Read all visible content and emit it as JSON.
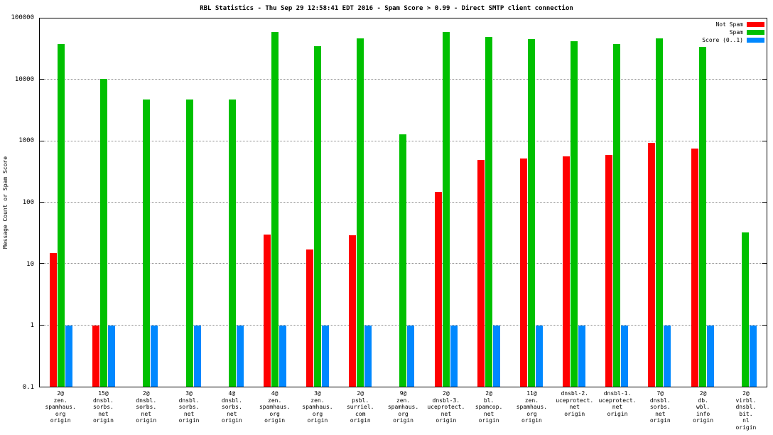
{
  "chart_data": {
    "type": "bar",
    "title": "RBL Statistics - Thu Sep 29 12:58:41 EDT 2016 - Spam Score > 0.99 - Direct SMTP client connection",
    "ylabel": "Message Count or Spam Score",
    "xlabel": "",
    "y_scale": "log",
    "ylim": [
      0.1,
      100000
    ],
    "y_ticks": [
      0.1,
      1,
      10,
      100,
      1000,
      10000,
      100000
    ],
    "grid": "horizontal-dotted",
    "legend_position": "top-right",
    "categories": [
      [
        "2@",
        "zen.",
        "spamhaus.",
        "org",
        "origin"
      ],
      [
        "15@",
        "dnsbl.",
        "sorbs.",
        "net",
        "origin"
      ],
      [
        "2@",
        "dnsbl.",
        "sorbs.",
        "net",
        "origin"
      ],
      [
        "3@",
        "dnsbl.",
        "sorbs.",
        "net",
        "origin"
      ],
      [
        "4@",
        "dnsbl.",
        "sorbs.",
        "net",
        "origin"
      ],
      [
        "4@",
        "zen.",
        "spamhaus.",
        "org",
        "origin"
      ],
      [
        "3@",
        "zen.",
        "spamhaus.",
        "org",
        "origin"
      ],
      [
        "2@",
        "psbl.",
        "surriel.",
        "com",
        "origin"
      ],
      [
        "9@",
        "zen.",
        "spamhaus.",
        "org",
        "origin"
      ],
      [
        "2@",
        "dnsbl-3.",
        "uceprotect.",
        "net",
        "origin"
      ],
      [
        "2@",
        "bl.",
        "spamcop.",
        "net",
        "origin"
      ],
      [
        "11@",
        "zen.",
        "spamhaus.",
        "org",
        "origin"
      ],
      [
        "dnsbl-2.",
        "uceprotect.",
        "net",
        "origin"
      ],
      [
        "dnsbl-1.",
        "uceprotect.",
        "net",
        "origin"
      ],
      [
        "7@",
        "dnsbl.",
        "sorbs.",
        "net",
        "origin"
      ],
      [
        "2@",
        "db.",
        "wbl.",
        "info",
        "origin"
      ],
      [
        "2@",
        "virbl.",
        "dnsbl.",
        "bit.",
        "nl",
        "origin"
      ]
    ],
    "series": [
      {
        "name": "Not Spam",
        "color": "#ff0000",
        "values": [
          15,
          1,
          0,
          0,
          0,
          30,
          17,
          29,
          0,
          150,
          500,
          520,
          560,
          600,
          950,
          750,
          0
        ]
      },
      {
        "name": "Spam",
        "color": "#00c000",
        "values": [
          38000,
          10500,
          4800,
          4800,
          4800,
          60000,
          35000,
          48000,
          1300,
          60000,
          50000,
          46000,
          43000,
          38000,
          47000,
          34000,
          33
        ]
      },
      {
        "name": "Score (0..1)",
        "color": "#0088ff",
        "values": [
          1,
          1,
          1,
          1,
          1,
          1,
          1,
          1,
          1,
          1,
          1,
          1,
          1,
          1,
          1,
          1,
          1
        ]
      }
    ]
  },
  "colors": {
    "background": "#ffffff",
    "axis_border": "#000000",
    "grid": "#8a8a8a",
    "not_spam": "#ff0000",
    "spam": "#00c000",
    "score": "#0088ff"
  }
}
